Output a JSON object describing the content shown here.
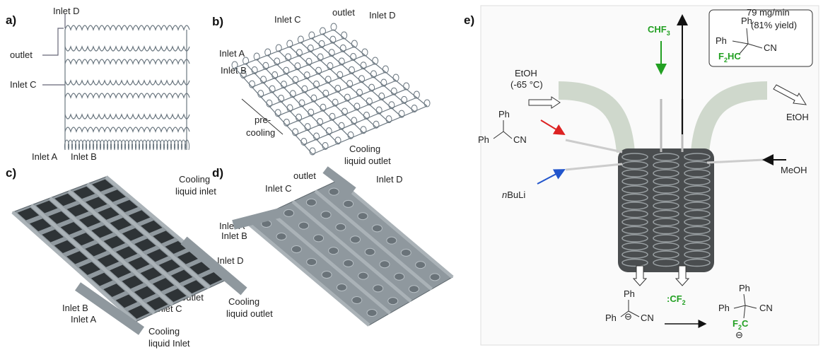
{
  "panels": {
    "a": {
      "label": "a)",
      "inlet_d": "Inlet D",
      "outlet": "outlet",
      "inlet_c": "Inlet C",
      "inlet_a": "Inlet A",
      "inlet_b": "Inlet B"
    },
    "b": {
      "label": "b)",
      "inlet_c": "Inlet C",
      "outlet": "outlet",
      "inlet_d": "Inlet D",
      "inlet_a": "Inlet A",
      "inlet_b": "Inlet B",
      "pre": "pre-",
      "cooling": "cooling"
    },
    "c": {
      "label": "c)",
      "cooling_in_1": "Cooling",
      "cooling_in_2": "liquid inlet",
      "inlet_d": "Inlet D",
      "outlet": "outlet",
      "inlet_c": "Inlet C",
      "inlet_b": "Inlet B",
      "inlet_a": "Inlet A",
      "cooling_out_1": "Cooling",
      "cooling_out_2": "liquid outlet",
      "cooling_in2_1": "Cooling",
      "cooling_in2_2": "liquid Inlet"
    },
    "d": {
      "label": "d)",
      "cooling_out_1": "Cooling",
      "cooling_out_2": "liquid outlet",
      "outlet": "outlet",
      "inlet_c": "Inlet C",
      "inlet_d": "Inlet D",
      "inlet_a": "Inlet A",
      "inlet_b": "Inlet B"
    },
    "e": {
      "label": "e)",
      "chf3": {
        "base": "CHF",
        "sub": "3"
      },
      "rate": "79 mg/min",
      "yield": "(81% yield)",
      "etoh_in": "EtOH",
      "temp": "(-65 °C)",
      "etoh_out": "EtOH",
      "meoh": "MeOH",
      "nbuli": {
        "italic": "n",
        "rest": "BuLi"
      },
      "nitrile": {
        "ph1": "Ph",
        "ph2": "Ph",
        "cn": "CN"
      },
      "product_box": {
        "ph1": "Ph",
        "ph2": "Ph",
        "cn": "CN",
        "f": "F",
        "sub": "2",
        "hc": "HC"
      },
      "anion": {
        "ph1": "Ph",
        "ph2": "Ph",
        "cn": "CN",
        "charge": "⊖"
      },
      "carbene": {
        "base": ":CF",
        "sub": "2"
      },
      "product": {
        "ph1": "Ph",
        "ph2": "Ph",
        "cn": "CN",
        "f": "F",
        "sub": "2",
        "c": "C",
        "charge": "⊖"
      }
    }
  }
}
